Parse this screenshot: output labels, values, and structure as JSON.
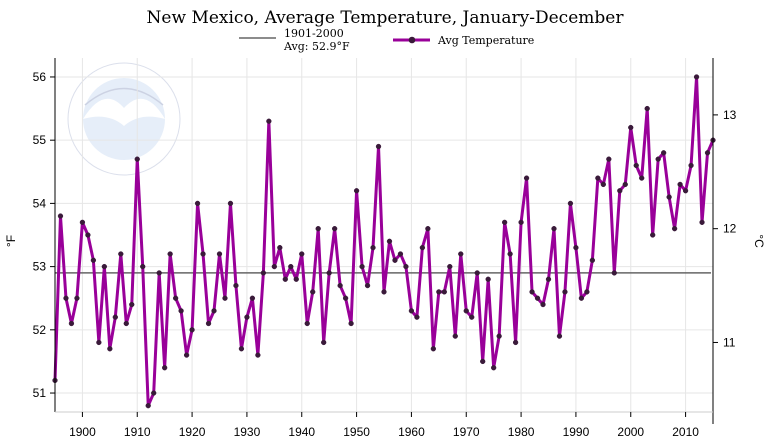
{
  "chart_data": {
    "type": "line",
    "title": "New Mexico, Average Temperature, January-December",
    "ylabel_left": "°F",
    "ylabel_right": "°C",
    "xlim": [
      1895,
      2015
    ],
    "ylim": [
      50.7,
      56.3
    ],
    "x_ticks": [
      1900,
      1910,
      1920,
      1930,
      1940,
      1950,
      1960,
      1970,
      1980,
      1990,
      2000,
      2010
    ],
    "y_ticks_f": [
      51,
      52,
      53,
      54,
      55,
      56
    ],
    "y_ticks_c": [
      11,
      12,
      13
    ],
    "grid": true,
    "legend_position": "top-center",
    "baseline": {
      "label_line1": "1901-2000",
      "label_line2": "Avg: 52.9°F",
      "value": 52.9,
      "color": "#666666"
    },
    "series": [
      {
        "name": "Avg Temperature",
        "color": "#990099",
        "marker_color": "#3a1a3a",
        "x": [
          1895,
          1896,
          1897,
          1898,
          1899,
          1900,
          1901,
          1902,
          1903,
          1904,
          1905,
          1906,
          1907,
          1908,
          1909,
          1910,
          1911,
          1912,
          1913,
          1914,
          1915,
          1916,
          1917,
          1918,
          1919,
          1920,
          1921,
          1922,
          1923,
          1924,
          1925,
          1926,
          1927,
          1928,
          1929,
          1930,
          1931,
          1932,
          1933,
          1934,
          1935,
          1936,
          1937,
          1938,
          1939,
          1940,
          1941,
          1942,
          1943,
          1944,
          1945,
          1946,
          1947,
          1948,
          1949,
          1950,
          1951,
          1952,
          1953,
          1954,
          1955,
          1956,
          1957,
          1958,
          1959,
          1960,
          1961,
          1962,
          1963,
          1964,
          1965,
          1966,
          1967,
          1968,
          1969,
          1970,
          1971,
          1972,
          1973,
          1974,
          1975,
          1976,
          1977,
          1978,
          1979,
          1980,
          1981,
          1982,
          1983,
          1984,
          1985,
          1986,
          1987,
          1988,
          1989,
          1990,
          1991,
          1992,
          1993,
          1994,
          1995,
          1996,
          1997,
          1998,
          1999,
          2000,
          2001,
          2002,
          2003,
          2004,
          2005,
          2006,
          2007,
          2008,
          2009,
          2010,
          2011,
          2012,
          2013,
          2014,
          2015
        ],
        "values": [
          51.2,
          53.8,
          52.5,
          52.1,
          52.5,
          53.7,
          53.5,
          53.1,
          51.8,
          53.0,
          51.7,
          52.2,
          53.2,
          52.1,
          52.4,
          54.7,
          53.0,
          50.8,
          51.0,
          52.9,
          51.4,
          53.2,
          52.5,
          52.3,
          51.6,
          52.0,
          54.0,
          53.2,
          52.1,
          52.3,
          53.2,
          52.5,
          54.0,
          52.7,
          51.7,
          52.2,
          52.5,
          51.6,
          52.9,
          55.3,
          53.0,
          53.3,
          52.8,
          53.0,
          52.8,
          53.2,
          52.1,
          52.6,
          53.6,
          51.8,
          52.9,
          53.6,
          52.7,
          52.5,
          52.1,
          54.2,
          53.0,
          52.7,
          53.3,
          54.9,
          52.6,
          53.4,
          53.1,
          53.2,
          53.0,
          52.3,
          52.2,
          53.3,
          53.6,
          51.7,
          52.6,
          52.6,
          53.0,
          51.9,
          53.2,
          52.3,
          52.2,
          52.9,
          51.5,
          52.8,
          51.4,
          51.9,
          53.7,
          53.2,
          51.8,
          53.7,
          54.4,
          52.6,
          52.5,
          52.4,
          52.8,
          53.6,
          51.9,
          52.6,
          54.0,
          53.3,
          52.5,
          52.6,
          53.1,
          54.4,
          54.3,
          54.7,
          52.9,
          54.2,
          54.3,
          55.2,
          54.6,
          54.4,
          55.5,
          53.5,
          54.7,
          54.8,
          54.1,
          53.6,
          54.3,
          54.2,
          54.6,
          56.0,
          53.7,
          54.8,
          55.0
        ]
      }
    ]
  }
}
